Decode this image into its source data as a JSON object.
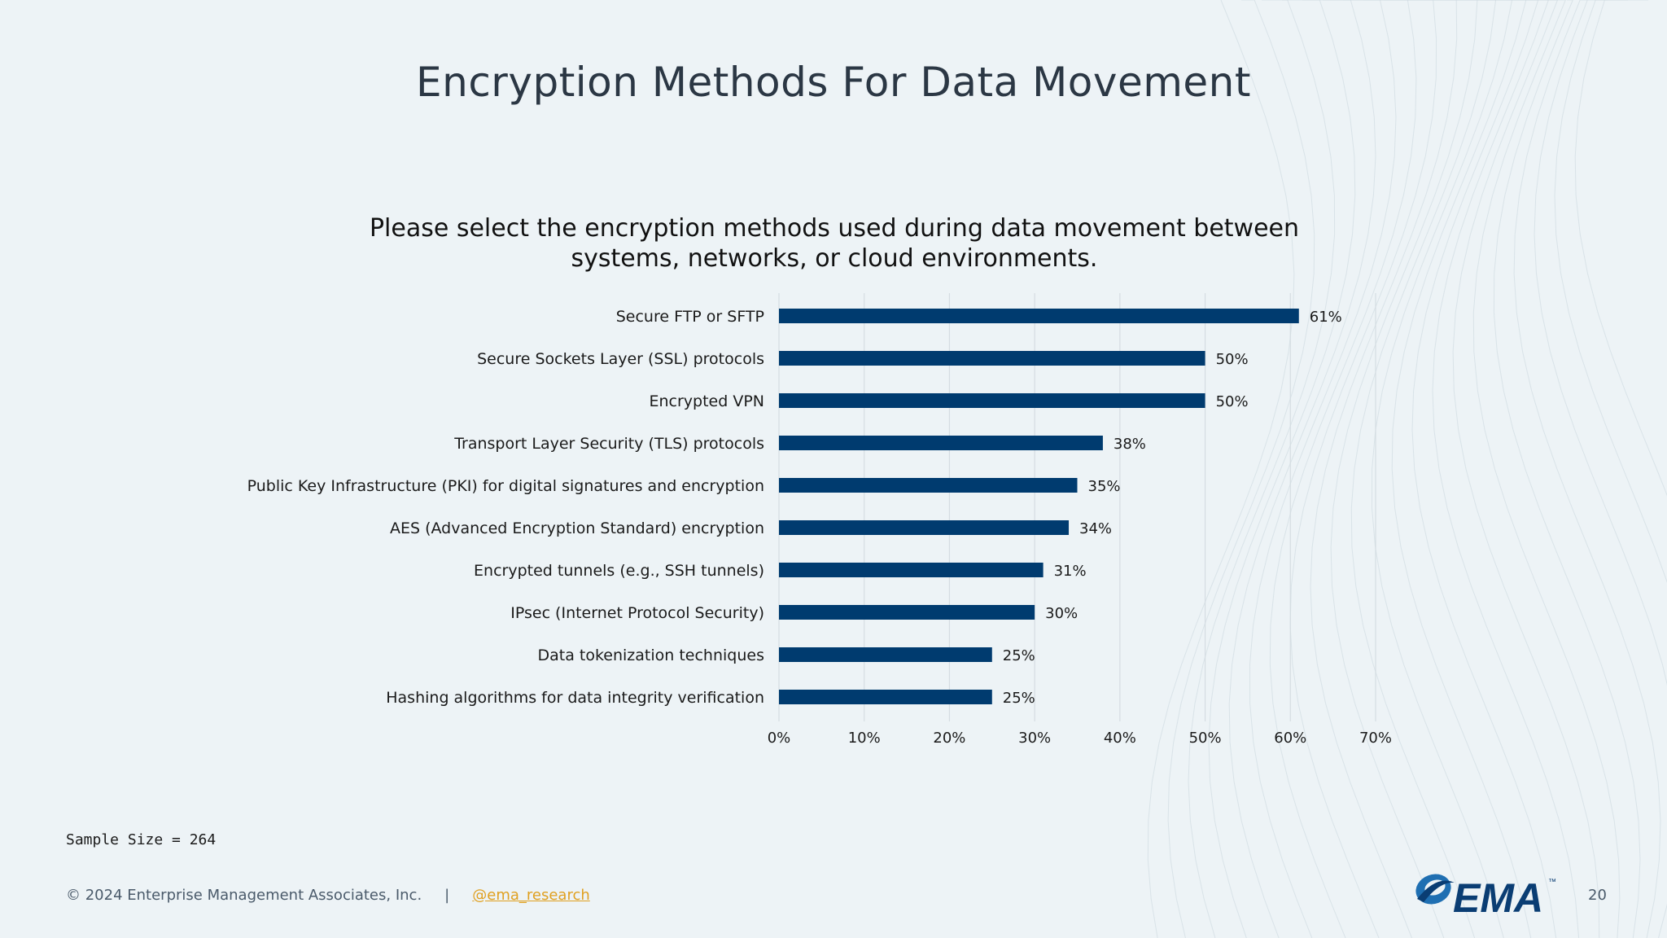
{
  "slide": {
    "title": "Encryption Methods For Data Movement",
    "question": "Please select the encryption methods used during data movement between systems, networks, or cloud environments.",
    "sample_size": "Sample Size = 264",
    "copyright": "© 2024 Enterprise Management Associates, Inc.",
    "separator": "|",
    "handle": "@ema_research",
    "page_number": "20",
    "logo_text": "EMA",
    "logo_mark": "™"
  },
  "colors": {
    "bar": "#003b6f",
    "grid": "#d5dde2",
    "background": "#edf3f6",
    "link": "#e0a020"
  },
  "chart_data": {
    "type": "bar",
    "orientation": "horizontal",
    "title": "",
    "categories": [
      "Secure FTP or SFTP",
      "Secure Sockets Layer (SSL) protocols",
      "Encrypted VPN",
      "Transport Layer Security (TLS) protocols",
      "Public Key Infrastructure (PKI) for digital signatures and encryption",
      "AES (Advanced Encryption Standard) encryption",
      "Encrypted tunnels (e.g., SSH tunnels)",
      "IPsec (Internet Protocol Security)",
      "Data tokenization techniques",
      "Hashing algorithms for data integrity verification"
    ],
    "values": [
      61,
      50,
      50,
      38,
      35,
      34,
      31,
      30,
      25,
      25
    ],
    "value_labels": [
      "61%",
      "50%",
      "50%",
      "38%",
      "35%",
      "34%",
      "31%",
      "30%",
      "25%",
      "25%"
    ],
    "xlim": [
      0,
      70
    ],
    "x_ticks": [
      "0%",
      "10%",
      "20%",
      "30%",
      "40%",
      "50%",
      "60%",
      "70%"
    ],
    "grid": true,
    "legend": "none"
  }
}
